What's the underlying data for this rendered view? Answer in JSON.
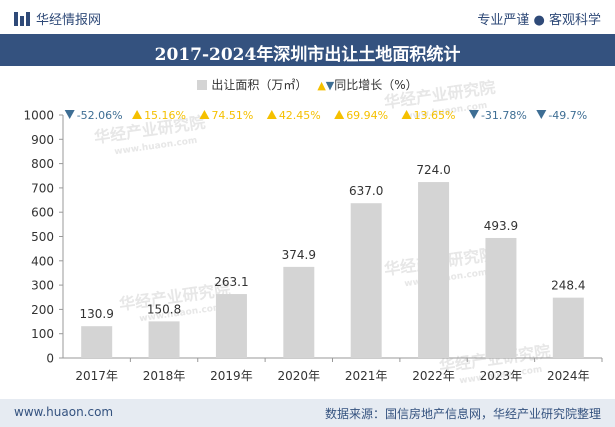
{
  "header": {
    "brand": "华经情报网",
    "slogan": "专业严谨 ● 客观科学"
  },
  "chart_data": {
    "type": "bar",
    "title": "2017-2024年深圳市出让土地面积统计",
    "legend": {
      "bar_series": "出让面积（万㎡）",
      "change_series": "同比增长（%）",
      "placement": "top-center"
    },
    "categories": [
      "2017年",
      "2018年",
      "2019年",
      "2020年",
      "2021年",
      "2022年",
      "2023年",
      "2024年"
    ],
    "values": [
      130.9,
      150.8,
      263.1,
      374.9,
      637.0,
      724.0,
      493.9,
      248.4
    ],
    "value_labels": [
      "130.9",
      "150.8",
      "263.1",
      "374.9",
      "637.0",
      "724.0",
      "493.9",
      "248.4"
    ],
    "growth": [
      {
        "label": "-52.06%",
        "dir": "down"
      },
      {
        "label": "15.16%",
        "dir": "up"
      },
      {
        "label": "74.51%",
        "dir": "up"
      },
      {
        "label": "42.45%",
        "dir": "up"
      },
      {
        "label": "69.94%",
        "dir": "up"
      },
      {
        "label": "13.65%",
        "dir": "up"
      },
      {
        "label": "-31.78%",
        "dir": "down"
      },
      {
        "label": "-49.7%",
        "dir": "down"
      }
    ],
    "ylim": [
      0,
      1000
    ],
    "yticks": [
      0,
      100,
      200,
      300,
      400,
      500,
      600,
      700,
      800,
      900,
      1000
    ],
    "grid": false,
    "colors": {
      "bar": "#d4d4d4",
      "up": "#f5c000",
      "down": "#3e6e94"
    }
  },
  "watermarks": [
    "华经产业研究院",
    "www.huaon.com"
  ],
  "footer": {
    "site": "www.huaon.com",
    "source": "数据来源：国信房地产信息网，华经产业研究院整理"
  }
}
